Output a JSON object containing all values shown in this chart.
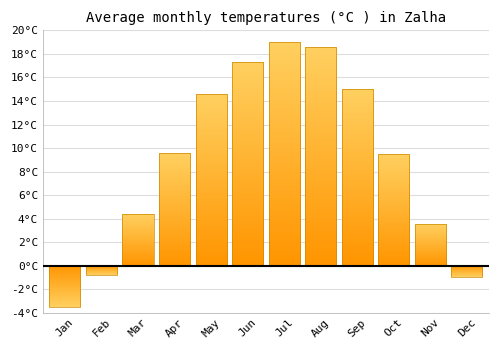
{
  "title": "Average monthly temperatures (°C ) in Zalha",
  "months": [
    "Jan",
    "Feb",
    "Mar",
    "Apr",
    "May",
    "Jun",
    "Jul",
    "Aug",
    "Sep",
    "Oct",
    "Nov",
    "Dec"
  ],
  "values": [
    -3.5,
    -0.8,
    4.4,
    9.6,
    14.6,
    17.3,
    19.0,
    18.6,
    15.0,
    9.5,
    3.5,
    -1.0
  ],
  "bar_color_top": "#FFA500",
  "bar_color_bottom": "#FFD060",
  "bar_edge_color": "#CC8800",
  "ylim": [
    -4,
    20
  ],
  "yticks": [
    -4,
    -2,
    0,
    2,
    4,
    6,
    8,
    10,
    12,
    14,
    16,
    18,
    20
  ],
  "ytick_labels": [
    "-4°C",
    "-2°C",
    "0°C",
    "2°C",
    "4°C",
    "6°C",
    "8°C",
    "10°C",
    "12°C",
    "14°C",
    "16°C",
    "18°C",
    "20°C"
  ],
  "background_color": "#ffffff",
  "plot_bg_color": "#ffffff",
  "grid_color": "#dddddd",
  "title_fontsize": 10,
  "tick_fontsize": 8,
  "zero_line_color": "#000000",
  "bar_width": 0.85
}
